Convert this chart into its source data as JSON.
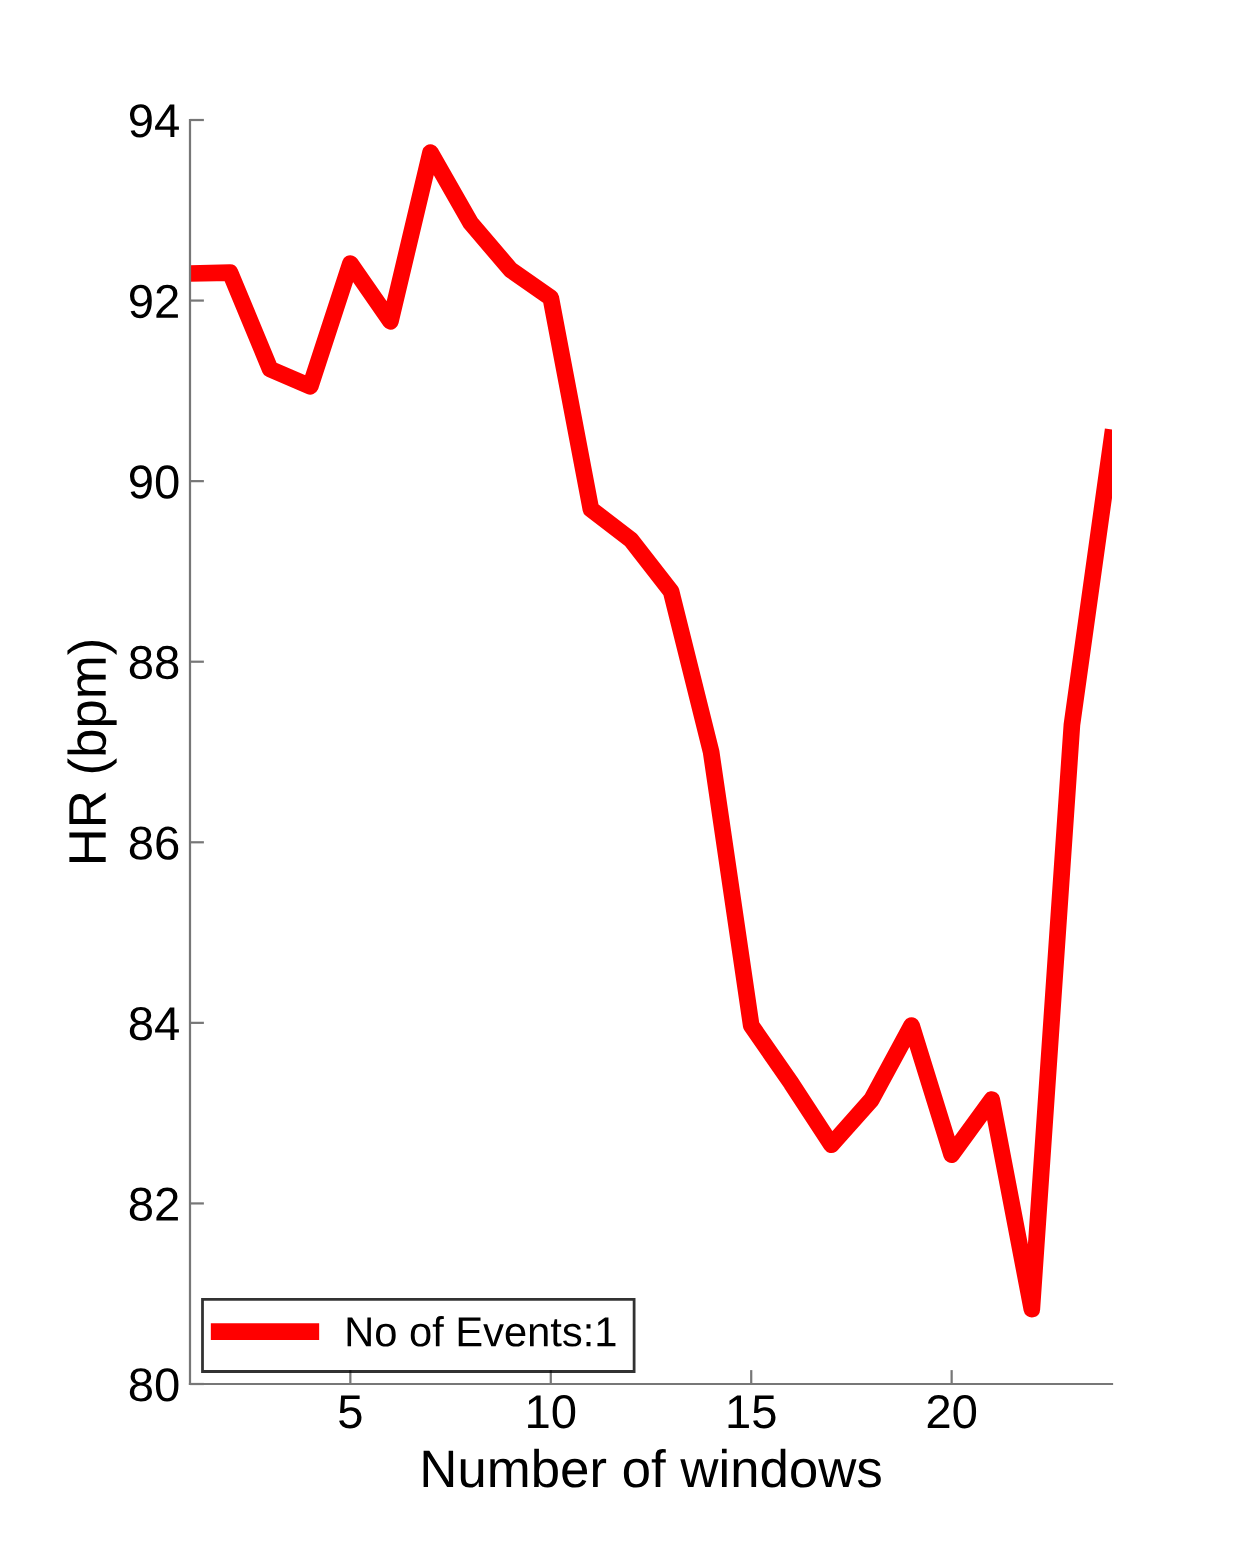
{
  "chart_data": {
    "type": "line",
    "xlabel": "Number of windows",
    "ylabel": "HR (bpm)",
    "x": [
      1,
      2,
      3,
      4,
      5,
      6,
      7,
      8,
      9,
      10,
      11,
      12,
      13,
      14,
      15,
      16,
      17,
      18,
      19,
      20,
      21,
      22,
      23,
      24
    ],
    "series": [
      {
        "name": "No of Events:1",
        "color": "#ff0000",
        "values": [
          92.3,
          92.31,
          91.24,
          91.05,
          92.41,
          91.77,
          93.64,
          92.86,
          92.34,
          92.03,
          89.69,
          89.35,
          88.78,
          87.0,
          83.97,
          83.33,
          82.65,
          83.15,
          83.97,
          82.54,
          83.15,
          80.83,
          87.3,
          90.48
        ]
      }
    ],
    "xlim": [
      1,
      24
    ],
    "xticks": [
      5,
      10,
      15,
      20
    ],
    "ylim": [
      80,
      94
    ],
    "yticks": [
      80,
      82,
      84,
      86,
      88,
      90,
      92,
      94
    ],
    "grid": false,
    "legend": "bottom left",
    "marker": "none",
    "line_style": "solid"
  }
}
